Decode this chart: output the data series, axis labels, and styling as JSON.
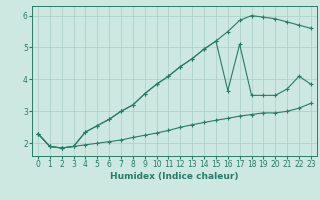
{
  "xlabel": "Humidex (Indice chaleur)",
  "bg_color": "#cce8e0",
  "grid_color": "#aacfc8",
  "line_color": "#2a7a6a",
  "xlim": [
    -0.5,
    23.5
  ],
  "ylim": [
    1.6,
    6.3
  ],
  "yticks": [
    2,
    3,
    4,
    5,
    6
  ],
  "xticks": [
    0,
    1,
    2,
    3,
    4,
    5,
    6,
    7,
    8,
    9,
    10,
    11,
    12,
    13,
    14,
    15,
    16,
    17,
    18,
    19,
    20,
    21,
    22,
    23
  ],
  "line1_x": [
    0,
    1,
    2,
    3,
    4,
    5,
    6,
    7,
    8,
    9,
    10,
    11,
    12,
    13,
    14,
    15,
    16,
    17,
    18,
    19,
    20,
    21,
    22,
    23
  ],
  "line1_y": [
    2.3,
    1.9,
    1.85,
    1.9,
    1.95,
    2.0,
    2.05,
    2.1,
    2.18,
    2.25,
    2.32,
    2.4,
    2.5,
    2.58,
    2.65,
    2.72,
    2.78,
    2.85,
    2.9,
    2.95,
    2.95,
    3.0,
    3.1,
    3.25
  ],
  "line2_x": [
    0,
    1,
    2,
    3,
    4,
    5,
    6,
    7,
    8,
    9,
    10,
    11,
    12,
    13,
    14,
    15,
    16,
    17,
    18,
    19,
    20,
    21,
    22,
    23
  ],
  "line2_y": [
    2.3,
    1.9,
    1.85,
    1.9,
    2.35,
    2.55,
    2.75,
    3.0,
    3.2,
    3.55,
    3.85,
    4.1,
    4.4,
    4.65,
    4.95,
    5.2,
    5.5,
    5.85,
    6.0,
    5.95,
    5.9,
    5.8,
    5.7,
    5.6
  ],
  "line3_x": [
    0,
    1,
    2,
    3,
    4,
    5,
    6,
    7,
    8,
    9,
    10,
    11,
    12,
    13,
    14,
    15,
    16,
    17,
    18,
    19,
    20,
    21,
    22,
    23
  ],
  "line3_y": [
    2.3,
    1.9,
    1.85,
    1.9,
    2.35,
    2.55,
    2.75,
    3.0,
    3.2,
    3.55,
    3.85,
    4.1,
    4.4,
    4.65,
    4.95,
    5.2,
    3.65,
    5.1,
    3.5,
    3.5,
    3.5,
    3.7,
    4.1,
    3.85
  ]
}
